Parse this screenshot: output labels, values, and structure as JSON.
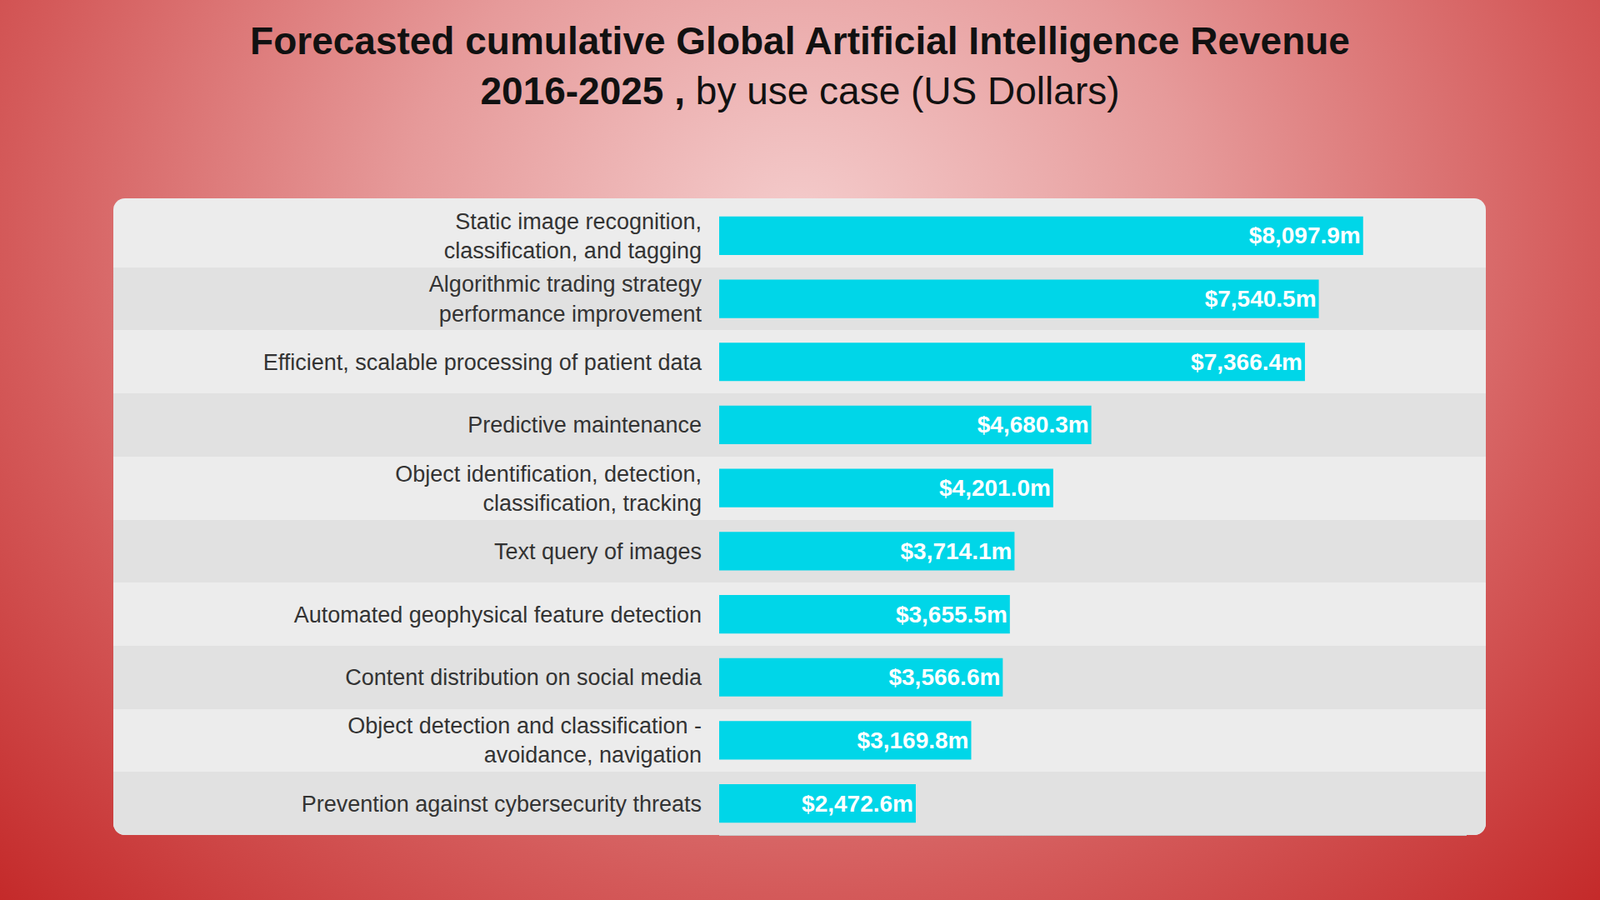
{
  "chart_data": {
    "type": "bar",
    "orientation": "horizontal",
    "title": "Forecasted cumulative Global Artificial Intelligence Revenue 2016-2025 , by use case (US Dollars)",
    "categories": [
      "Static image recognition, classification, and tagging",
      "Algorithmic trading strategy performance improvement",
      "Efficient, scalable processing of patient data",
      "Predictive maintenance",
      "Object identification, detection, classification, tracking",
      "Text query of images",
      "Automated geophysical feature detection",
      "Content distribution on social media",
      "Object detection and classification - avoidance, navigation",
      "Prevention against cybersecurity threats"
    ],
    "values": [
      8097.9,
      7540.5,
      7366.4,
      4680.3,
      4201.0,
      3714.1,
      3655.5,
      3566.6,
      3169.8,
      2472.6
    ],
    "value_labels": [
      "$8,097.9m",
      "$7,540.5m",
      "$7,366.4m",
      "$4,680.3m",
      "$4,201.0m",
      "$3,714.1m",
      "$3,655.5m",
      "$3,566.6m",
      "$3,169.8m",
      "$2,472.6m"
    ],
    "color": "#00d6e8",
    "xlim": [
      0,
      9400
    ],
    "xticks": [],
    "grid": false,
    "data_labels": true,
    "tick_labels": "y"
  }
}
